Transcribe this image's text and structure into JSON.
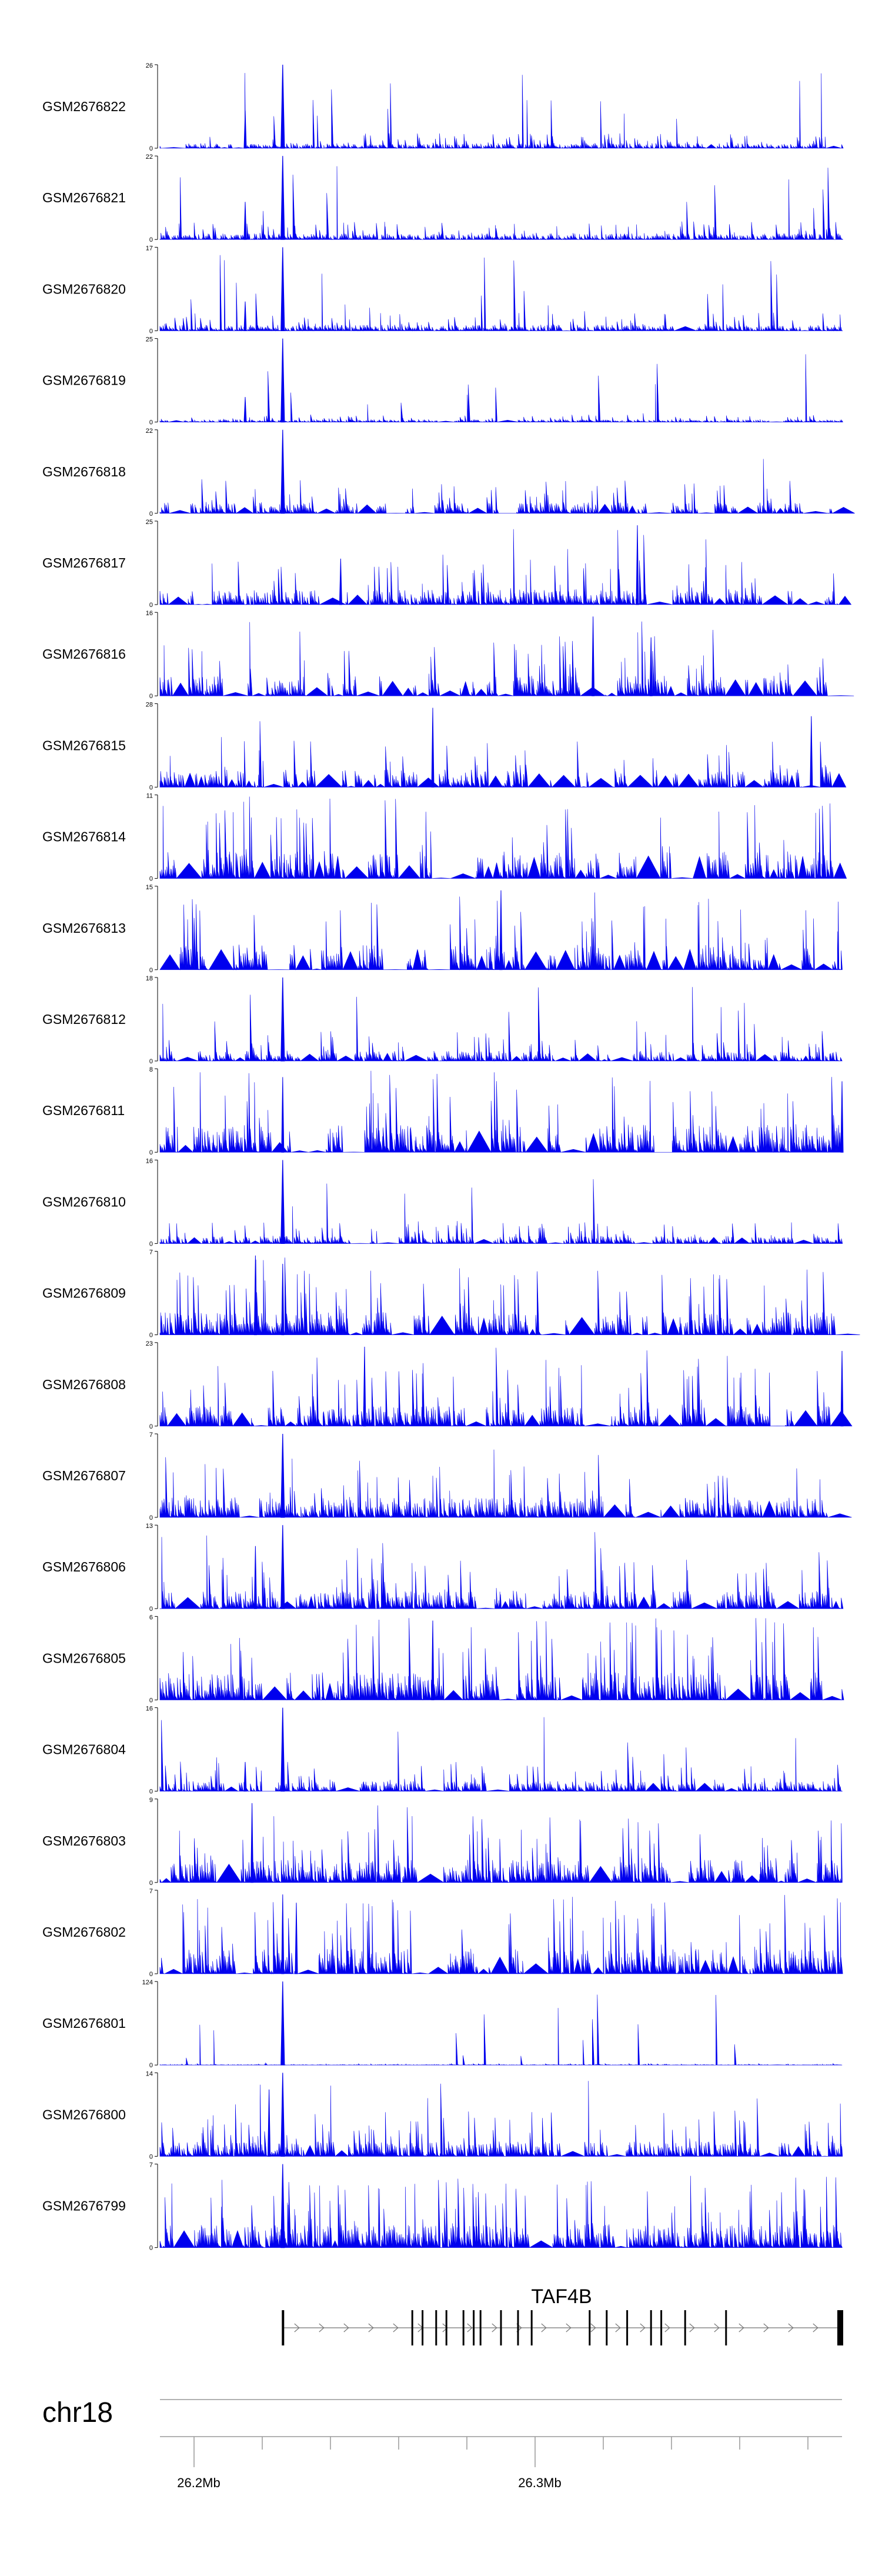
{
  "chart_data": {
    "type": "area",
    "chromosome": "chr18",
    "x_range_mb": [
      26.19,
      26.39
    ],
    "x_tick_labels": [
      "26.2Mb",
      "26.3Mb"
    ],
    "x_ticks_mb": [
      26.2,
      26.3
    ],
    "minor_ticks_mb": [
      26.2,
      26.22,
      26.24,
      26.26,
      26.28,
      26.3,
      26.32,
      26.34,
      26.36,
      26.38
    ],
    "series_color": "#0000ee",
    "peak_position_mb": 26.226,
    "tracks": [
      {
        "name": "GSM2676822",
        "ymax": 26,
        "peak": 26,
        "base": 0.1,
        "gap": 0.05,
        "seed": 11,
        "secondary": [
          [
            26.215,
            0.45
          ]
        ]
      },
      {
        "name": "GSM2676821",
        "ymax": 22,
        "peak": 22,
        "base": 0.12,
        "gap": 0.05,
        "seed": 12,
        "secondary": [
          [
            26.215,
            0.45
          ]
        ]
      },
      {
        "name": "GSM2676820",
        "ymax": 17,
        "peak": 17,
        "base": 0.12,
        "gap": 0.05,
        "seed": 13,
        "secondary": [
          [
            26.215,
            0.35
          ]
        ]
      },
      {
        "name": "GSM2676819",
        "ymax": 25,
        "peak": 25,
        "base": 0.05,
        "gap": 0.05,
        "seed": 14,
        "secondary": [
          [
            26.215,
            0.3
          ]
        ]
      },
      {
        "name": "GSM2676818",
        "ymax": 22,
        "peak": 22,
        "base": 0.22,
        "gap": 0.35,
        "seed": 15,
        "secondary": []
      },
      {
        "name": "GSM2676817",
        "ymax": 25,
        "peak": 0,
        "base": 0.3,
        "gap": 0.4,
        "seed": 16,
        "secondary": [
          [
            26.33,
            0.95
          ],
          [
            26.243,
            0.55
          ]
        ]
      },
      {
        "name": "GSM2676816",
        "ymax": 16,
        "peak": 0,
        "base": 0.4,
        "gap": 0.5,
        "seed": 17,
        "secondary": [
          [
            26.317,
            0.95
          ],
          [
            26.334,
            0.7
          ]
        ]
      },
      {
        "name": "GSM2676815",
        "ymax": 28,
        "peak": 0,
        "base": 0.35,
        "gap": 0.45,
        "seed": 18,
        "secondary": [
          [
            26.27,
            0.95
          ],
          [
            26.381,
            0.85
          ]
        ]
      },
      {
        "name": "GSM2676814",
        "ymax": 11,
        "peak": 0,
        "base": 0.55,
        "gap": 0.55,
        "seed": 19,
        "secondary": []
      },
      {
        "name": "GSM2676813",
        "ymax": 15,
        "peak": 0,
        "base": 0.5,
        "gap": 0.55,
        "seed": 20,
        "secondary": [
          [
            26.29,
            0.95
          ]
        ]
      },
      {
        "name": "GSM2676812",
        "ymax": 18,
        "peak": 18,
        "base": 0.2,
        "gap": 0.2,
        "seed": 21,
        "secondary": []
      },
      {
        "name": "GSM2676811",
        "ymax": 8,
        "peak": 0,
        "base": 0.55,
        "gap": 0.3,
        "seed": 22,
        "secondary": [
          [
            26.226,
            0.9
          ],
          [
            26.39,
            0.85
          ]
        ]
      },
      {
        "name": "GSM2676810",
        "ymax": 16,
        "peak": 16,
        "base": 0.15,
        "gap": 0.15,
        "seed": 23,
        "secondary": []
      },
      {
        "name": "GSM2676809",
        "ymax": 7,
        "peak": 0,
        "base": 0.45,
        "gap": 0.25,
        "seed": 24,
        "secondary": [
          [
            26.218,
            0.95
          ],
          [
            26.226,
            0.85
          ]
        ]
      },
      {
        "name": "GSM2676808",
        "ymax": 23,
        "peak": 0,
        "base": 0.4,
        "gap": 0.4,
        "seed": 25,
        "secondary": [
          [
            26.25,
            0.95
          ],
          [
            26.39,
            0.9
          ]
        ]
      },
      {
        "name": "GSM2676807",
        "ymax": 7,
        "peak": 7,
        "base": 0.4,
        "gap": 0.15,
        "seed": 26,
        "secondary": []
      },
      {
        "name": "GSM2676806",
        "ymax": 13,
        "peak": 13,
        "base": 0.35,
        "gap": 0.25,
        "seed": 27,
        "secondary": [
          [
            26.218,
            0.75
          ]
        ]
      },
      {
        "name": "GSM2676805",
        "ymax": 6,
        "peak": 0,
        "base": 0.55,
        "gap": 0.15,
        "seed": 28,
        "secondary": [
          [
            26.27,
            0.95
          ]
        ]
      },
      {
        "name": "GSM2676804",
        "ymax": 16,
        "peak": 16,
        "base": 0.2,
        "gap": 0.2,
        "seed": 29,
        "secondary": [
          [
            26.215,
            0.35
          ]
        ]
      },
      {
        "name": "GSM2676803",
        "ymax": 9,
        "peak": 0,
        "base": 0.45,
        "gap": 0.2,
        "seed": 30,
        "secondary": [
          [
            26.217,
            0.95
          ]
        ]
      },
      {
        "name": "GSM2676802",
        "ymax": 7,
        "peak": 0,
        "base": 0.5,
        "gap": 0.25,
        "seed": 31,
        "secondary": [
          [
            26.226,
            0.95
          ],
          [
            26.23,
            0.85
          ]
        ]
      },
      {
        "name": "GSM2676801",
        "ymax": 124,
        "peak": 124,
        "base": 0.01,
        "gap": 0.05,
        "seed": 32,
        "secondary": []
      },
      {
        "name": "GSM2676800",
        "ymax": 14,
        "peak": 14,
        "base": 0.3,
        "gap": 0.2,
        "seed": 33,
        "secondary": [
          [
            26.222,
            0.8
          ]
        ]
      },
      {
        "name": "GSM2676799",
        "ymax": 7,
        "peak": 7,
        "base": 0.45,
        "gap": 0.15,
        "seed": 34,
        "secondary": []
      }
    ],
    "gene": {
      "name": "TAF4B",
      "start_mb": 26.226,
      "end_mb": 26.39,
      "strand": "+",
      "exons_mb": [
        26.226,
        26.264,
        26.267,
        26.271,
        26.274,
        26.279,
        26.282,
        26.284,
        26.29,
        26.295,
        26.299,
        26.316,
        26.321,
        26.327,
        26.334,
        26.337,
        26.344,
        26.356,
        26.39
      ]
    }
  }
}
